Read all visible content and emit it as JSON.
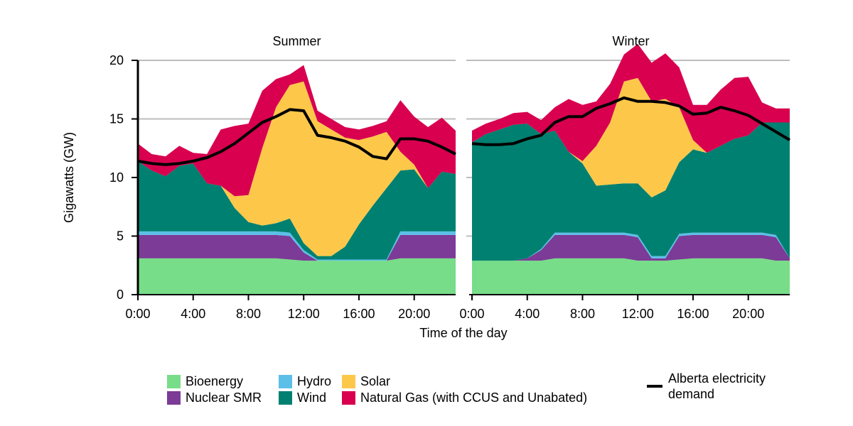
{
  "chart_data": {
    "type": "area",
    "ylabel": "Gigawatts (GW)",
    "xlabel": "Time of the day",
    "ylim": [
      0,
      20
    ],
    "yticks": [
      "0",
      "5",
      "10",
      "15",
      "20"
    ],
    "xticks": [
      "0:00",
      "4:00",
      "8:00",
      "12:00",
      "16:00",
      "20:00"
    ],
    "grid": "horizontal",
    "legend_position": "bottom",
    "hours": [
      0,
      1,
      2,
      3,
      4,
      5,
      6,
      7,
      8,
      9,
      10,
      11,
      12,
      13,
      14,
      15,
      16,
      17,
      18,
      19,
      20,
      21,
      22,
      23
    ],
    "series_info": [
      {
        "key": "bio",
        "name": "Bioenergy",
        "color": "#77dd88"
      },
      {
        "key": "nuc",
        "name": "Nuclear SMR",
        "color": "#7b3b96"
      },
      {
        "key": "hydro",
        "name": "Hydro",
        "color": "#5bbfe8"
      },
      {
        "key": "wind",
        "name": "Wind",
        "color": "#008070"
      },
      {
        "key": "solar",
        "name": "Solar",
        "color": "#fdc84a"
      },
      {
        "key": "gas",
        "name": "Natural Gas (with CCUS and Unabated)",
        "color": "#d8004f"
      }
    ],
    "demand_label": "Alberta electricity demand",
    "demand_color": "#000000",
    "panels": [
      {
        "title": "Summer",
        "bio": [
          3.1,
          3.1,
          3.1,
          3.1,
          3.1,
          3.1,
          3.1,
          3.1,
          3.1,
          3.1,
          3.1,
          3.0,
          2.9,
          2.9,
          2.9,
          2.9,
          2.9,
          2.9,
          2.9,
          3.1,
          3.1,
          3.1,
          3.1,
          3.1
        ],
        "nuc": [
          2.0,
          2.0,
          2.0,
          2.0,
          2.0,
          2.0,
          2.0,
          2.0,
          2.0,
          2.0,
          2.0,
          2.0,
          0.7,
          0.0,
          0.0,
          0.0,
          0.0,
          0.0,
          0.0,
          2.0,
          2.0,
          2.0,
          2.0,
          2.0
        ],
        "hydro": [
          0.3,
          0.3,
          0.3,
          0.3,
          0.3,
          0.3,
          0.3,
          0.3,
          0.3,
          0.3,
          0.3,
          0.3,
          0.2,
          0.1,
          0.1,
          0.1,
          0.1,
          0.1,
          0.1,
          0.3,
          0.3,
          0.3,
          0.3,
          0.3
        ],
        "wind": [
          6.0,
          5.2,
          4.7,
          5.6,
          5.8,
          4.1,
          3.9,
          2.0,
          0.8,
          0.5,
          0.7,
          1.2,
          0.6,
          0.3,
          0.3,
          1.1,
          3.0,
          4.6,
          6.1,
          5.2,
          5.3,
          3.7,
          5.1,
          4.9
        ],
        "solar": [
          0.0,
          0.0,
          0.0,
          0.0,
          0.0,
          0.0,
          0.0,
          1.0,
          2.3,
          6.6,
          9.9,
          11.4,
          13.8,
          11.5,
          10.8,
          9.3,
          7.2,
          5.9,
          4.8,
          1.6,
          0.4,
          0.0,
          0.0,
          0.0
        ],
        "gas": [
          1.5,
          1.4,
          1.7,
          1.7,
          0.9,
          2.5,
          4.8,
          6.0,
          6.1,
          4.9,
          2.4,
          0.9,
          1.4,
          0.9,
          0.9,
          0.9,
          0.9,
          0.9,
          0.9,
          4.4,
          4.1,
          5.2,
          4.6,
          3.7
        ],
        "demand": [
          11.4,
          11.2,
          11.1,
          11.2,
          11.4,
          11.7,
          12.2,
          12.9,
          13.8,
          14.7,
          15.2,
          15.8,
          15.7,
          13.6,
          13.4,
          13.1,
          12.6,
          11.8,
          11.6,
          13.3,
          13.3,
          13.1,
          12.6,
          12.0
        ]
      },
      {
        "title": "Winter",
        "bio": [
          2.9,
          2.9,
          2.9,
          2.9,
          2.9,
          2.9,
          3.1,
          3.1,
          3.1,
          3.1,
          3.1,
          3.1,
          2.9,
          2.9,
          2.9,
          3.0,
          3.1,
          3.1,
          3.1,
          3.1,
          3.1,
          3.1,
          2.9,
          2.9
        ],
        "nuc": [
          0.0,
          0.0,
          0.0,
          0.0,
          0.2,
          0.9,
          2.0,
          2.0,
          2.0,
          2.0,
          2.0,
          2.0,
          2.0,
          0.2,
          0.2,
          2.0,
          2.0,
          2.0,
          2.0,
          2.0,
          2.0,
          2.0,
          2.0,
          0.2
        ],
        "hydro": [
          0.0,
          0.0,
          0.0,
          0.0,
          0.0,
          0.1,
          0.2,
          0.2,
          0.2,
          0.2,
          0.2,
          0.2,
          0.2,
          0.2,
          0.2,
          0.2,
          0.2,
          0.2,
          0.2,
          0.2,
          0.2,
          0.2,
          0.2,
          0.0
        ],
        "wind": [
          10.1,
          10.8,
          11.2,
          11.6,
          11.5,
          9.8,
          8.7,
          6.9,
          5.9,
          4.0,
          4.1,
          4.2,
          4.4,
          5.0,
          5.6,
          6.1,
          7.1,
          6.8,
          7.4,
          8.0,
          8.3,
          9.4,
          9.6,
          11.6
        ],
        "solar": [
          0.0,
          0.0,
          0.0,
          0.0,
          0.0,
          0.0,
          0.0,
          0.0,
          0.2,
          3.4,
          5.3,
          8.7,
          9.0,
          8.2,
          7.8,
          4.7,
          0.8,
          0.0,
          0.0,
          0.0,
          0.0,
          0.0,
          0.0,
          0.0
        ],
        "gas": [
          1.0,
          0.9,
          0.9,
          1.0,
          1.0,
          1.2,
          2.0,
          4.5,
          4.8,
          3.8,
          3.3,
          2.3,
          2.9,
          3.3,
          3.9,
          3.4,
          3.0,
          4.1,
          4.8,
          5.2,
          5.0,
          1.7,
          1.2,
          1.2
        ],
        "demand": [
          12.9,
          12.8,
          12.8,
          12.9,
          13.3,
          13.6,
          14.7,
          15.2,
          15.2,
          15.9,
          16.3,
          16.8,
          16.5,
          16.5,
          16.4,
          16.1,
          15.4,
          15.5,
          16.0,
          15.7,
          15.3,
          14.6,
          13.9,
          13.2
        ]
      }
    ]
  }
}
